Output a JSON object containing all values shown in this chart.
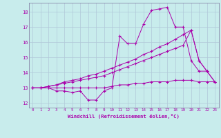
{
  "xlabel": "Windchill (Refroidissement éolien,°C)",
  "background_color": "#c8ecec",
  "grid_color": "#b0c8d8",
  "line_color": "#aa00aa",
  "xlim": [
    -0.5,
    23.5
  ],
  "ylim": [
    11.7,
    18.6
  ],
  "xticks": [
    0,
    1,
    2,
    3,
    4,
    5,
    6,
    7,
    8,
    9,
    10,
    11,
    12,
    13,
    14,
    15,
    16,
    17,
    18,
    19,
    20,
    21,
    22,
    23
  ],
  "yticks": [
    12,
    13,
    14,
    15,
    16,
    17,
    18
  ],
  "series": {
    "line1_x": [
      0,
      1,
      2,
      3,
      4,
      5,
      6,
      7,
      8,
      9,
      10,
      11,
      12,
      13,
      14,
      15,
      16,
      17,
      18,
      19,
      20,
      21,
      22
    ],
    "line1_y": [
      13.0,
      13.0,
      13.0,
      12.8,
      12.8,
      12.7,
      12.8,
      12.2,
      12.2,
      12.8,
      13.0,
      16.4,
      15.9,
      15.9,
      17.2,
      18.1,
      18.2,
      18.3,
      17.0,
      17.0,
      14.8,
      14.1,
      14.1
    ],
    "line2_x": [
      0,
      1,
      2,
      3,
      4,
      5,
      6,
      7,
      8,
      9,
      10,
      11,
      12,
      13,
      14,
      15,
      16,
      17,
      18,
      19,
      20,
      21,
      22,
      23
    ],
    "line2_y": [
      13.0,
      13.0,
      13.0,
      13.0,
      13.0,
      13.0,
      13.0,
      13.0,
      13.0,
      13.0,
      13.1,
      13.2,
      13.2,
      13.3,
      13.3,
      13.4,
      13.4,
      13.4,
      13.5,
      13.5,
      13.5,
      13.4,
      13.4,
      13.4
    ],
    "line3_x": [
      0,
      1,
      2,
      3,
      4,
      5,
      6,
      7,
      8,
      9,
      10,
      11,
      12,
      13,
      14,
      15,
      16,
      17,
      18,
      19,
      20,
      21,
      22,
      23
    ],
    "line3_y": [
      13.0,
      13.0,
      13.1,
      13.2,
      13.3,
      13.4,
      13.5,
      13.6,
      13.7,
      13.8,
      14.0,
      14.2,
      14.4,
      14.6,
      14.8,
      15.0,
      15.2,
      15.4,
      15.6,
      15.8,
      16.8,
      14.8,
      14.1,
      13.4
    ],
    "line4_x": [
      0,
      1,
      2,
      3,
      4,
      5,
      6,
      7,
      8,
      9,
      10,
      11,
      12,
      13,
      14,
      15,
      16,
      17,
      18,
      19,
      20,
      21,
      22,
      23
    ],
    "line4_y": [
      13.0,
      13.0,
      13.1,
      13.2,
      13.4,
      13.5,
      13.6,
      13.8,
      13.9,
      14.1,
      14.3,
      14.5,
      14.7,
      14.9,
      15.2,
      15.4,
      15.7,
      15.9,
      16.2,
      16.5,
      16.8,
      14.8,
      14.1,
      13.4
    ]
  }
}
